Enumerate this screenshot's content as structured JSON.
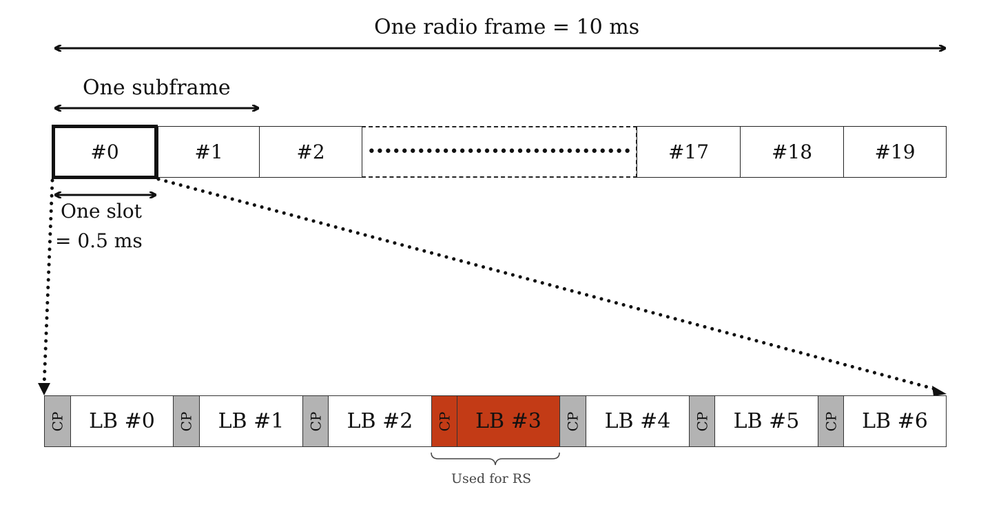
{
  "title": "One radio frame = 10 ms",
  "subframe_label": "One subframe",
  "slot_label_line1": "One slot",
  "slot_label_line2": "= 0.5 ms",
  "slots": [
    "#0",
    "#1",
    "#2",
    "#17",
    "#18",
    "#19"
  ],
  "ellipsis": "••••••••••••••••••••••••••••••••",
  "symbols": [
    {
      "cp": "CP",
      "label": "LB #0",
      "highlight": false
    },
    {
      "cp": "CP",
      "label": "LB #1",
      "highlight": false
    },
    {
      "cp": "CP",
      "label": "LB #2",
      "highlight": false
    },
    {
      "cp": "CP",
      "label": "LB #3",
      "highlight": true
    },
    {
      "cp": "CP",
      "label": "LB #4",
      "highlight": false
    },
    {
      "cp": "CP",
      "label": "LB #5",
      "highlight": false
    },
    {
      "cp": "CP",
      "label": "LB #6",
      "highlight": false
    }
  ],
  "rs_label": "Used for RS",
  "colors": {
    "cp_fill": "#b3b3b3",
    "highlight_fill": "#c33b16",
    "stroke": "#111111"
  }
}
